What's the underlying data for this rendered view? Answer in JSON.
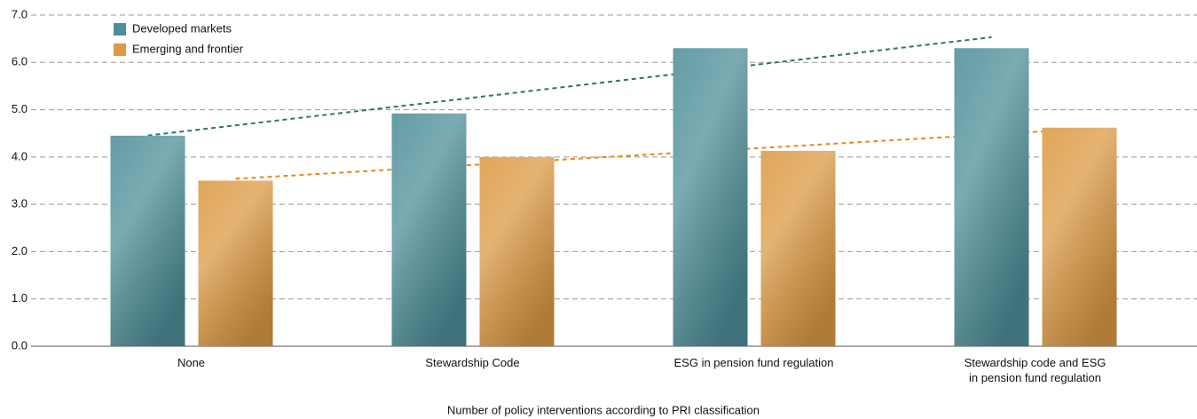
{
  "chart_data": {
    "type": "bar",
    "x_label": "Number of policy interventions according to PRI classification",
    "categories": [
      "None",
      "Stewardship Code",
      "ESG in pension fund regulation",
      "Stewardship code and ESG\nin pension fund regulation"
    ],
    "series": [
      {
        "name": "Developed markets",
        "color": "#4f8f99",
        "trend_color": "#2f7565",
        "values": [
          4.45,
          4.92,
          6.3,
          6.3
        ]
      },
      {
        "name": "Emerging and frontier",
        "color": "#dc9a44",
        "trend_color": "#e8891f",
        "values": [
          3.5,
          4.0,
          4.13,
          4.62
        ]
      }
    ],
    "ylim": [
      0,
      7
    ],
    "yticks": [
      {
        "value": 0,
        "label": "0.0"
      },
      {
        "value": 1,
        "label": "1.0"
      },
      {
        "value": 2,
        "label": "2.0"
      },
      {
        "value": 3,
        "label": "3.0"
      },
      {
        "value": 4,
        "label": "4.0"
      },
      {
        "value": 5,
        "label": "5.0"
      },
      {
        "value": 6,
        "label": "6.0"
      },
      {
        "value": 7,
        "label": "7.0"
      }
    ],
    "grid": true,
    "trendline": true,
    "legend": "top-left"
  }
}
